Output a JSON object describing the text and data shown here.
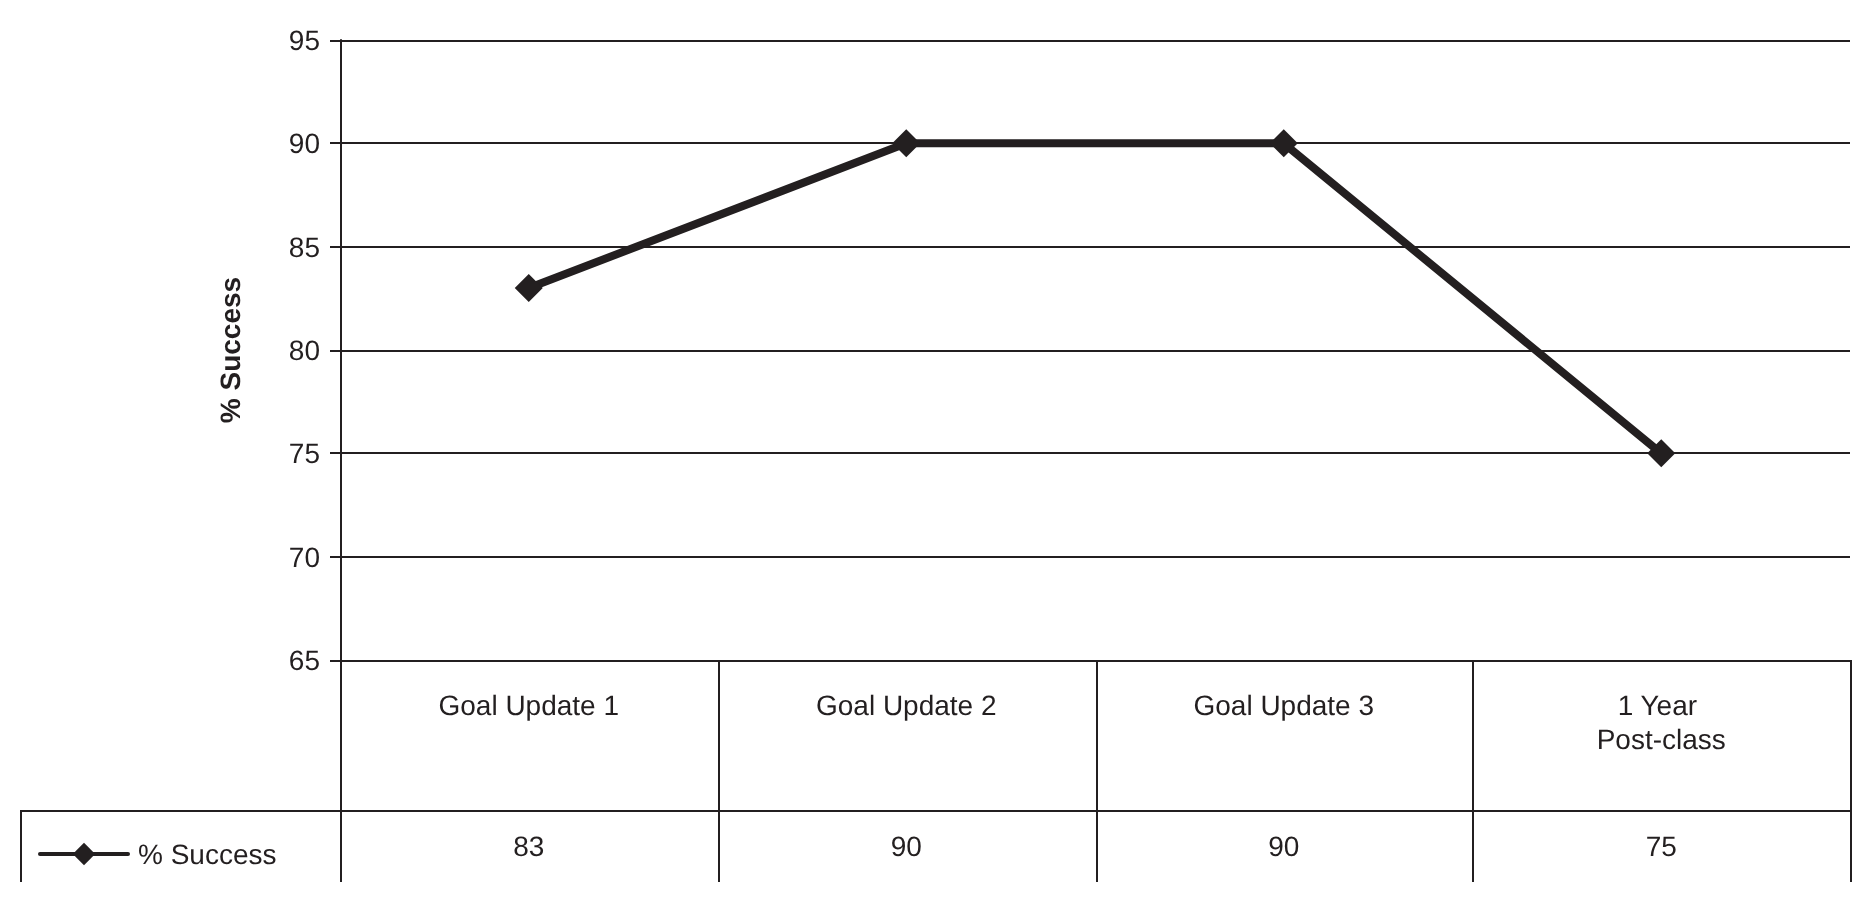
{
  "chart_data": {
    "type": "line",
    "ylabel": "% Success",
    "categories": [
      "Goal Update 1",
      "Goal Update 2",
      "Goal Update 3",
      "1 Year Post-class"
    ],
    "series": [
      {
        "name": "% Success",
        "color": "#231f20",
        "values": [
          83,
          90,
          90,
          75
        ]
      }
    ],
    "ylim": [
      65,
      95
    ],
    "yticks": [
      65,
      70,
      75,
      80,
      85,
      90,
      95
    ],
    "grid": "y",
    "legend": "bottom left",
    "marker": "diamond",
    "line_style": "solid",
    "data_labels": true
  }
}
